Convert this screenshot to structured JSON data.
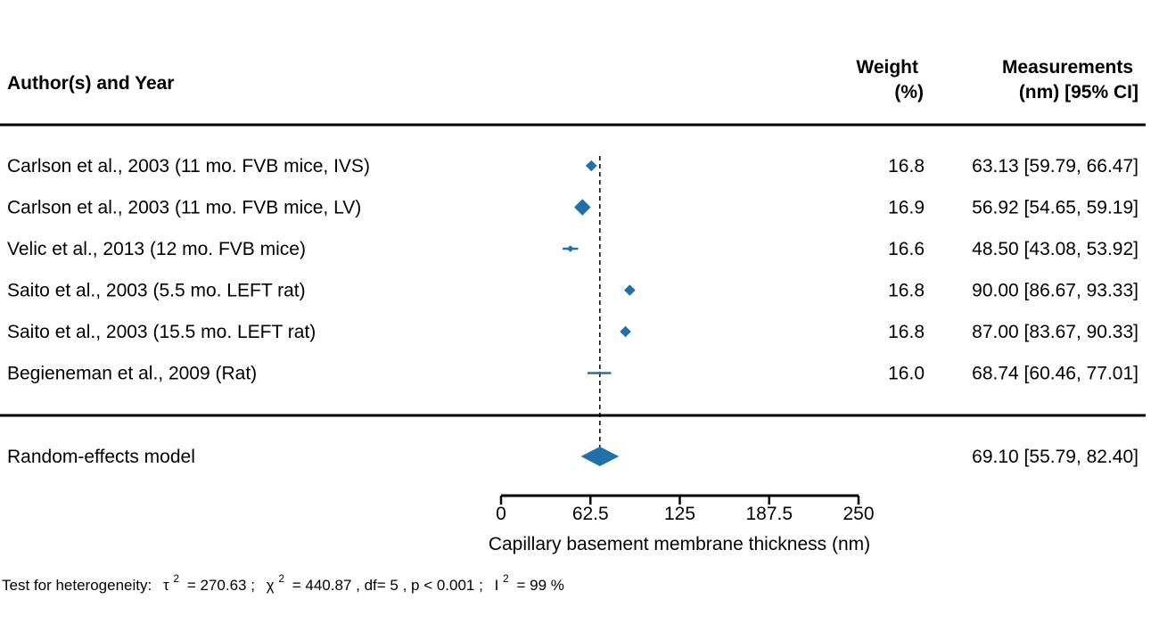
{
  "header": {
    "study_label": "Author(s) and Year",
    "weight_label_line1": "Weight",
    "weight_label_line2": "(%)",
    "estimate_label_line1": "Measurements",
    "estimate_label_line2": "(nm) [95% CI]"
  },
  "colors": {
    "marker": "#2171a8",
    "reference_line": "#000000"
  },
  "chart_data": {
    "type": "forest",
    "xlabel": "Capillary basement membrane thickness (nm)",
    "xlim": [
      0,
      250
    ],
    "xticks": [
      "0",
      "62.5",
      "125",
      "187.5",
      "250"
    ],
    "studies": [
      {
        "label": "Carlson et al., 2003 (11 mo. FVB mice, IVS)",
        "weight": "16.8",
        "estimate": 63.13,
        "lower": 59.79,
        "upper": 66.47,
        "ci_text": "63.13 [59.79, 66.47]"
      },
      {
        "label": "Carlson et al., 2003 (11 mo. FVB mice, LV)",
        "weight": "16.9",
        "estimate": 56.92,
        "lower": 54.65,
        "upper": 59.19,
        "ci_text": "56.92 [54.65, 59.19]"
      },
      {
        "label": "Velic et al., 2013 (12 mo. FVB mice)",
        "weight": "16.6",
        "estimate": 48.5,
        "lower": 43.08,
        "upper": 53.92,
        "ci_text": "48.50 [43.08, 53.92]"
      },
      {
        "label": "Saito et al., 2003 (5.5 mo. LEFT rat)",
        "weight": "16.8",
        "estimate": 90.0,
        "lower": 86.67,
        "upper": 93.33,
        "ci_text": "90.00 [86.67, 93.33]"
      },
      {
        "label": "Saito et al., 2003 (15.5 mo. LEFT rat)",
        "weight": "16.8",
        "estimate": 87.0,
        "lower": 83.67,
        "upper": 90.33,
        "ci_text": "87.00 [83.67, 90.33]"
      },
      {
        "label": "Begieneman et al., 2009 (Rat)",
        "weight": "16.0",
        "estimate": 68.74,
        "lower": 60.46,
        "upper": 77.01,
        "ci_text": "68.74 [60.46, 77.01]"
      }
    ],
    "summary": {
      "label": "Random-effects model",
      "estimate": 69.1,
      "lower": 55.79,
      "upper": 82.4,
      "ci_text": "69.10 [55.79, 82.40]"
    },
    "reference_value": 69.1
  },
  "footer": {
    "prefix": "Test for heterogeneity:",
    "tau_symbol": "τ",
    "tau_value": "= 270.63 ;",
    "chi_symbol": "χ",
    "chi_value": "= 440.87 , df= 5 ,  p < 0.001 ;",
    "i_symbol": "I",
    "i_value": "= 99 %",
    "superscript": "2"
  }
}
